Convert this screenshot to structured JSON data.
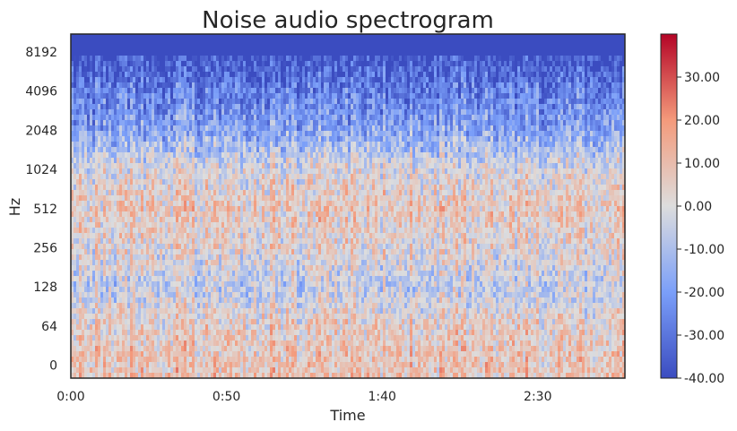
{
  "chart_data": {
    "type": "heatmap",
    "title": "Noise audio spectrogram",
    "xlabel": "Time",
    "ylabel": "Hz",
    "x_scale": "time",
    "y_scale": "log2 (symlog)",
    "xlim_seconds": [
      0,
      178
    ],
    "x_ticks": [
      {
        "label": "0:00",
        "seconds": 0
      },
      {
        "label": "0:50",
        "seconds": 50
      },
      {
        "label": "1:40",
        "seconds": 100
      },
      {
        "label": "2:30",
        "seconds": 150
      }
    ],
    "y_ticks": [
      {
        "label": "0",
        "hz": 0
      },
      {
        "label": "64",
        "hz": 64
      },
      {
        "label": "128",
        "hz": 128
      },
      {
        "label": "256",
        "hz": 256
      },
      {
        "label": "512",
        "hz": 512
      },
      {
        "label": "1024",
        "hz": 1024
      },
      {
        "label": "2048",
        "hz": 2048
      },
      {
        "label": "4096",
        "hz": 4096
      },
      {
        "label": "8192",
        "hz": 8192
      }
    ],
    "colorbar": {
      "colormap": "coolwarm",
      "range": [
        -40,
        40
      ],
      "ticks": [
        "30.00",
        "20.00",
        "10.00",
        "0.00",
        "-10.00",
        "-20.00",
        "-30.00",
        "-40.00"
      ]
    },
    "band_levels_db": [
      {
        "hz": 0,
        "db": 8
      },
      {
        "hz": 64,
        "db": 5
      },
      {
        "hz": 128,
        "db": -6
      },
      {
        "hz": 256,
        "db": 2
      },
      {
        "hz": 512,
        "db": 6
      },
      {
        "hz": 1024,
        "db": 0
      },
      {
        "hz": 2048,
        "db": -18
      },
      {
        "hz": 4096,
        "db": -27
      },
      {
        "hz": 8192,
        "db": -40
      }
    ],
    "grid": false
  },
  "colors": {
    "frame": "#262626",
    "cold": "#3b4cc0",
    "neutral": "#dddddd",
    "hot": "#b40426"
  }
}
